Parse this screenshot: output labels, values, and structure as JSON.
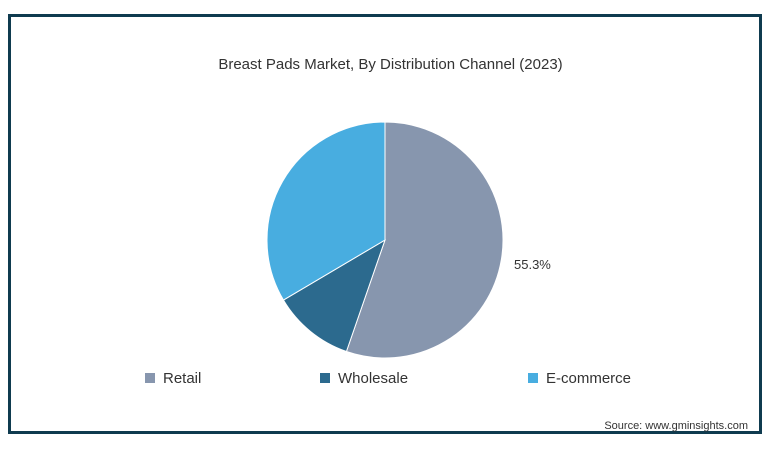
{
  "chart_data": {
    "type": "pie",
    "title": "Breast Pads Market, By Distribution Channel (2023)",
    "categories": [
      "Retail",
      "Wholesale",
      "E-commerce"
    ],
    "values": [
      55.3,
      11.2,
      33.5
    ],
    "colors": [
      "#8796ae",
      "#2c6a8e",
      "#48ade0"
    ],
    "data_labels": [
      "55.3%",
      "",
      ""
    ],
    "legend_position": "bottom"
  },
  "source": "Source: www.gminsights.com"
}
